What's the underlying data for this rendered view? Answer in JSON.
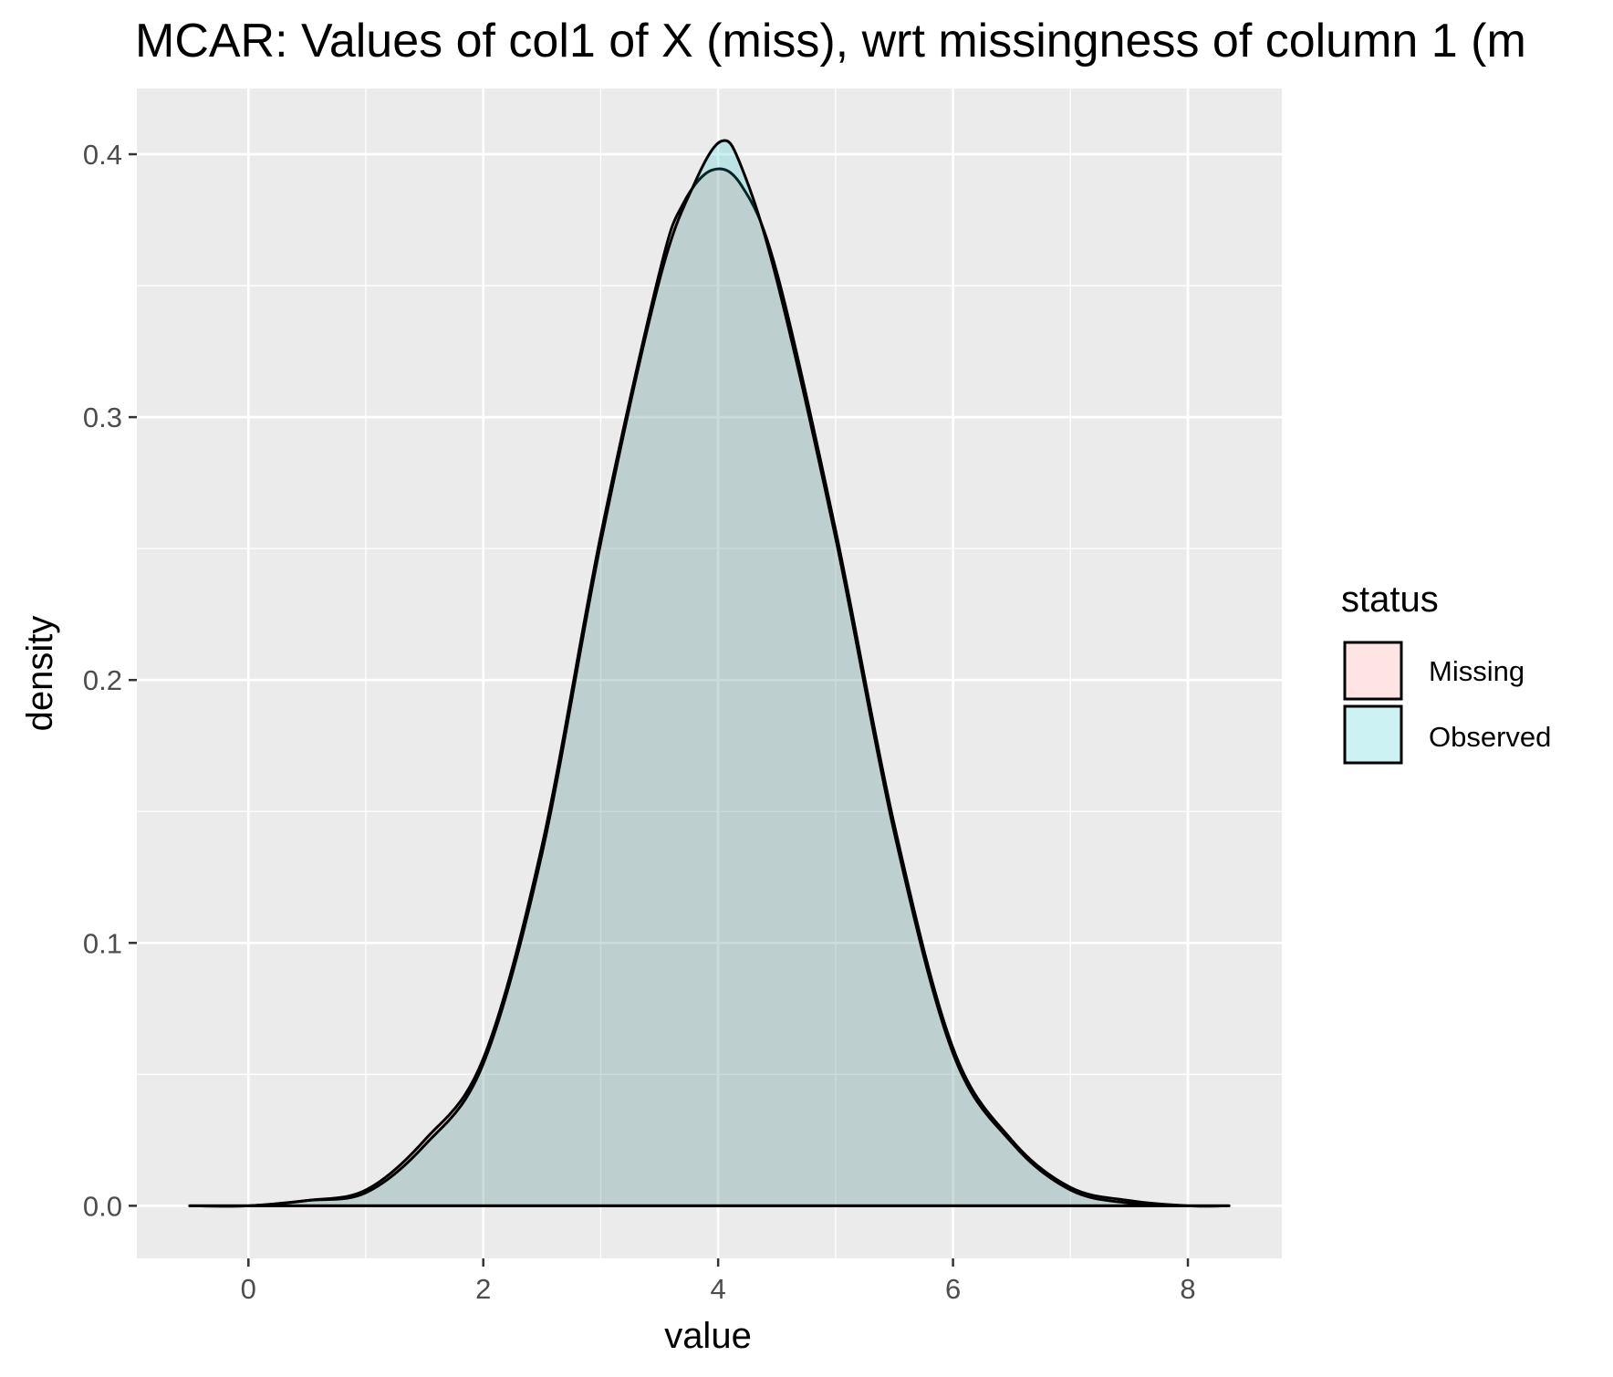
{
  "chart_data": {
    "type": "area",
    "title": "MCAR: Values of col1 of X (miss), wrt missingness of column 1 (m",
    "xlabel": "value",
    "ylabel": "density",
    "xlim": [
      -0.95,
      8.8
    ],
    "ylim": [
      -0.02,
      0.425
    ],
    "x_ticks": [
      0,
      2,
      4,
      6,
      8
    ],
    "y_ticks": [
      0.0,
      0.1,
      0.2,
      0.3,
      0.4
    ],
    "x_tick_labels": [
      "0",
      "2",
      "4",
      "6",
      "8"
    ],
    "y_tick_labels": [
      "0.0",
      "0.1",
      "0.2",
      "0.3",
      "0.4"
    ],
    "grid": true,
    "legend": {
      "title": "status",
      "position": "right",
      "entries": [
        "Missing",
        "Observed"
      ]
    },
    "colors": {
      "panel_background": "#ebebeb",
      "grid_line": "#ffffff",
      "Missing": "#f8766d",
      "Observed": "#00bfc4",
      "outline": "#000000",
      "fill_alpha": 0.2
    },
    "series": [
      {
        "name": "Missing",
        "x": [
          -0.5,
          0.0,
          0.5,
          1.0,
          1.5,
          2.0,
          2.5,
          3.0,
          3.5,
          3.7,
          3.95,
          4.2,
          4.5,
          5.0,
          5.5,
          6.0,
          6.5,
          7.0,
          7.5,
          8.0,
          8.35
        ],
        "y": [
          0.0,
          0.0,
          0.002,
          0.006,
          0.025,
          0.056,
          0.137,
          0.255,
          0.355,
          0.381,
          0.394,
          0.388,
          0.355,
          0.257,
          0.145,
          0.06,
          0.025,
          0.007,
          0.002,
          0.0,
          0.0
        ]
      },
      {
        "name": "Observed",
        "x": [
          -0.5,
          0.0,
          0.5,
          1.0,
          1.5,
          2.0,
          2.5,
          3.0,
          3.5,
          3.8,
          4.03,
          4.2,
          4.5,
          5.0,
          5.5,
          6.0,
          6.5,
          7.0,
          7.5,
          8.0,
          8.35
        ],
        "y": [
          0.0,
          0.0,
          0.002,
          0.005,
          0.023,
          0.054,
          0.134,
          0.252,
          0.352,
          0.389,
          0.405,
          0.395,
          0.352,
          0.254,
          0.142,
          0.058,
          0.024,
          0.006,
          0.001,
          0.0,
          0.0
        ]
      }
    ]
  }
}
